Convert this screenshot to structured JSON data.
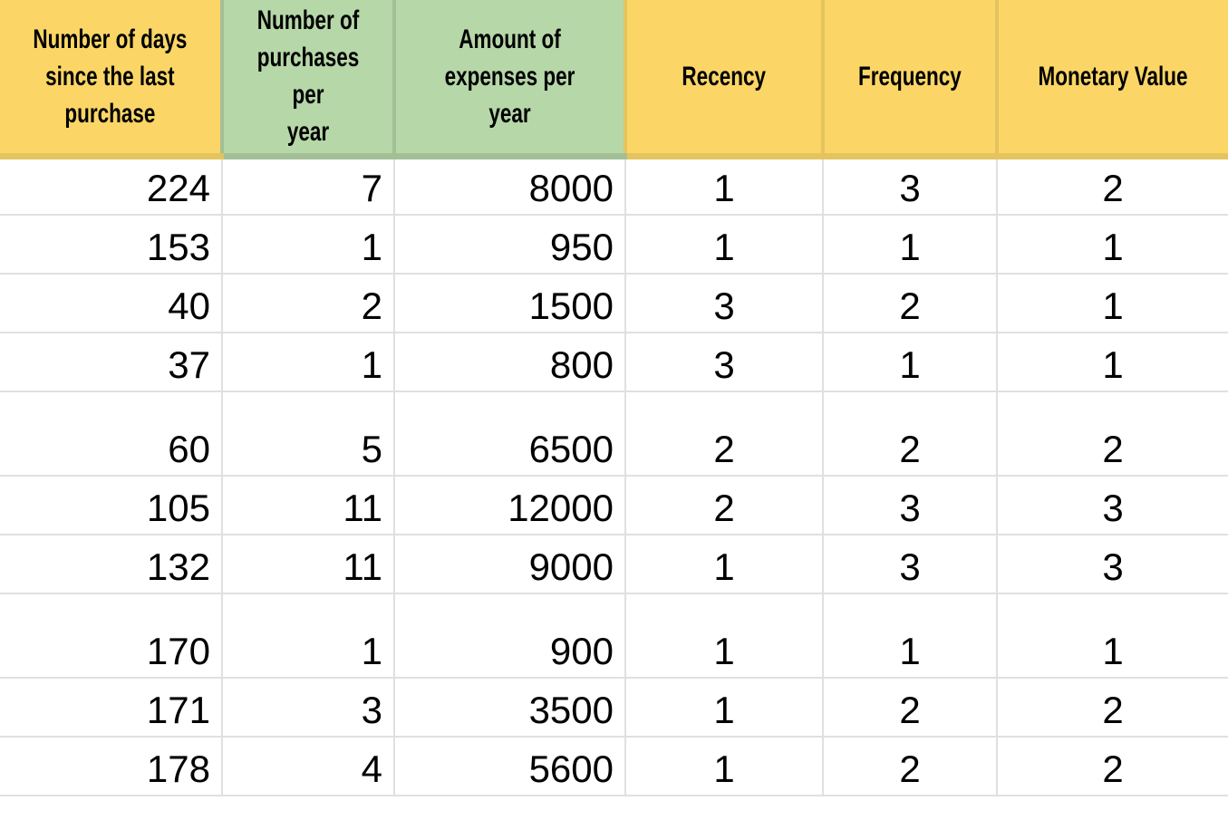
{
  "colors": {
    "header_yellow": "#FBD666",
    "header_yellow_divider": "#E4C45F",
    "header_green": "#B6D7A8",
    "header_green_divider": "#A3BF95",
    "gridline": "#E0E0E0",
    "text": "#000000",
    "cell_background": "#FFFFFF"
  },
  "table": {
    "columns": [
      {
        "label": "Number of days\nsince the last\npurchase",
        "color": "yellow",
        "align": "right"
      },
      {
        "label": "Number of\npurchases per\nyear",
        "color": "green",
        "align": "right"
      },
      {
        "label": "Amount of\nexpenses per year",
        "color": "green",
        "align": "right"
      },
      {
        "label": "Recency",
        "color": "yellow",
        "align": "center"
      },
      {
        "label": "Frequency",
        "color": "yellow",
        "align": "center"
      },
      {
        "label": "Monetary Value",
        "color": "yellow",
        "align": "center"
      }
    ],
    "rows": [
      {
        "cells": [
          "224",
          "7",
          "8000",
          "1",
          "3",
          "2"
        ],
        "tall": false
      },
      {
        "cells": [
          "153",
          "1",
          "950",
          "1",
          "1",
          "1"
        ],
        "tall": false
      },
      {
        "cells": [
          "40",
          "2",
          "1500",
          "3",
          "2",
          "1"
        ],
        "tall": false
      },
      {
        "cells": [
          "37",
          "1",
          "800",
          "3",
          "1",
          "1"
        ],
        "tall": false
      },
      {
        "cells": [
          "60",
          "5",
          "6500",
          "2",
          "2",
          "2"
        ],
        "tall": true
      },
      {
        "cells": [
          "105",
          "11",
          "12000",
          "2",
          "3",
          "3"
        ],
        "tall": false
      },
      {
        "cells": [
          "132",
          "11",
          "9000",
          "1",
          "3",
          "3"
        ],
        "tall": false
      },
      {
        "cells": [
          "170",
          "1",
          "900",
          "1",
          "1",
          "1"
        ],
        "tall": true
      },
      {
        "cells": [
          "171",
          "3",
          "3500",
          "1",
          "2",
          "2"
        ],
        "tall": false
      },
      {
        "cells": [
          "178",
          "4",
          "5600",
          "1",
          "2",
          "2"
        ],
        "tall": false
      }
    ]
  }
}
